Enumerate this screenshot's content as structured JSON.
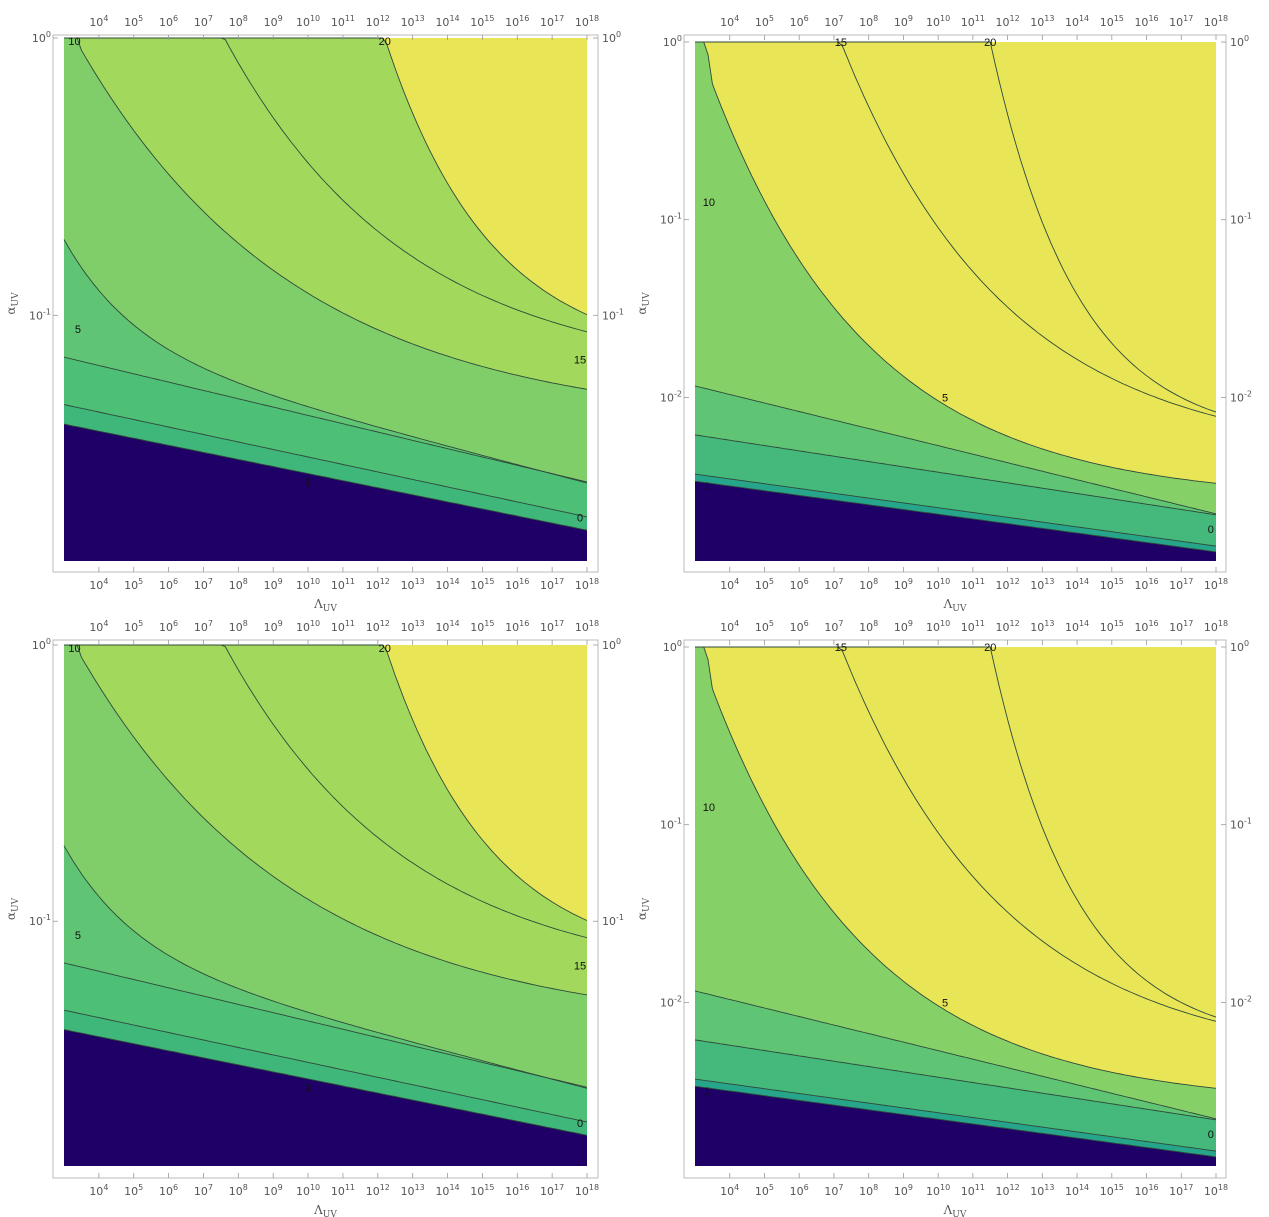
{
  "chart_data": [
    {
      "type": "contour",
      "panel": "top-left",
      "xlabel": "Λ_UV",
      "ylabel": "α_UV",
      "xscale": "log",
      "yscale": "log",
      "xlim": [
        1000,
        1e+18
      ],
      "ylim": [
        0.013,
        1
      ],
      "x_ticks": [
        "10^4",
        "10^5",
        "10^6",
        "10^7",
        "10^8",
        "10^9",
        "10^10",
        "10^11",
        "10^12",
        "10^13",
        "10^14",
        "10^15",
        "10^16",
        "10^17",
        "10^18"
      ],
      "y_ticks": [
        "10^0",
        "10^-1"
      ],
      "levels": [
        0,
        1,
        5,
        10,
        15,
        20
      ],
      "contour_labels": [
        "10",
        "20",
        "5",
        "15",
        "1",
        "0"
      ],
      "colors": [
        "#1e0066",
        "#2aa58c",
        "#47bc79",
        "#60c572",
        "#7fce69",
        "#a2d95c",
        "#e8e557"
      ],
      "region_colors": [
        {
          "from": "bottom",
          "color": "#1e0066"
        },
        {
          "band": "0-1",
          "color": "#40b77a"
        },
        {
          "band": "1-5",
          "color": "#48be78"
        },
        {
          "band": "5-10",
          "color": "#60c572"
        },
        {
          "band": "10-15",
          "color": "#80ce6a"
        },
        {
          "band": "15-20",
          "color": "#a3da5d"
        },
        {
          "band": ">20",
          "color": "#e8e557"
        }
      ]
    },
    {
      "type": "contour",
      "panel": "top-right",
      "xlabel": "Λ_UV",
      "ylabel": "α_UV",
      "xscale": "log",
      "yscale": "log",
      "xlim": [
        1000,
        1e+18
      ],
      "ylim": [
        0.0012,
        1
      ],
      "x_ticks": [
        "10^4",
        "10^5",
        "10^6",
        "10^7",
        "10^8",
        "10^9",
        "10^10",
        "10^11",
        "10^12",
        "10^13",
        "10^14",
        "10^15",
        "10^16",
        "10^17",
        "10^18"
      ],
      "y_ticks": [
        "10^0",
        "10^-1",
        "10^-2"
      ],
      "levels": [
        0,
        1,
        5,
        10,
        15,
        20
      ],
      "contour_labels": [
        "15",
        "20",
        "10",
        "5",
        "1",
        "0"
      ],
      "colors": [
        "#1e0066",
        "#25a18a",
        "#45ba7a",
        "#5fc473",
        "#87d167",
        "#e8e557"
      ]
    },
    {
      "type": "contour",
      "panel": "bottom-left",
      "xlabel": "Λ_UV",
      "ylabel": "α_UV",
      "xscale": "log",
      "yscale": "log",
      "xlim": [
        1000,
        1e+18
      ],
      "ylim": [
        0.013,
        1
      ],
      "x_ticks": [
        "10^4",
        "10^5",
        "10^6",
        "10^7",
        "10^8",
        "10^9",
        "10^10",
        "10^11",
        "10^12",
        "10^13",
        "10^14",
        "10^15",
        "10^16",
        "10^17",
        "10^18"
      ],
      "y_ticks": [
        "10^0",
        "10^-1"
      ],
      "levels": [
        0,
        1,
        5,
        10,
        15,
        20
      ],
      "contour_labels": [
        "10",
        "20",
        "5",
        "15",
        "1",
        "0"
      ],
      "colors": [
        "#1e0066",
        "#40b77a",
        "#5fc473",
        "#7fce69",
        "#a2d95c",
        "#e8e557"
      ]
    },
    {
      "type": "contour",
      "panel": "bottom-right",
      "xlabel": "Λ_UV",
      "ylabel": "α_UV",
      "xscale": "log",
      "yscale": "log",
      "xlim": [
        1000,
        1e+18
      ],
      "ylim": [
        0.0012,
        1
      ],
      "x_ticks": [
        "10^4",
        "10^5",
        "10^6",
        "10^7",
        "10^8",
        "10^9",
        "10^10",
        "10^11",
        "10^12",
        "10^13",
        "10^14",
        "10^15",
        "10^16",
        "10^17",
        "10^18"
      ],
      "y_ticks": [
        "10^0",
        "10^-1",
        "10^-2"
      ],
      "levels": [
        0,
        1,
        5,
        10,
        15,
        20
      ],
      "contour_labels": [
        "15",
        "20",
        "10",
        "5",
        "1",
        "0"
      ],
      "colors": [
        "#1e0066",
        "#25a18a",
        "#45ba7a",
        "#5fc473",
        "#87d167",
        "#e8e557"
      ]
    }
  ]
}
